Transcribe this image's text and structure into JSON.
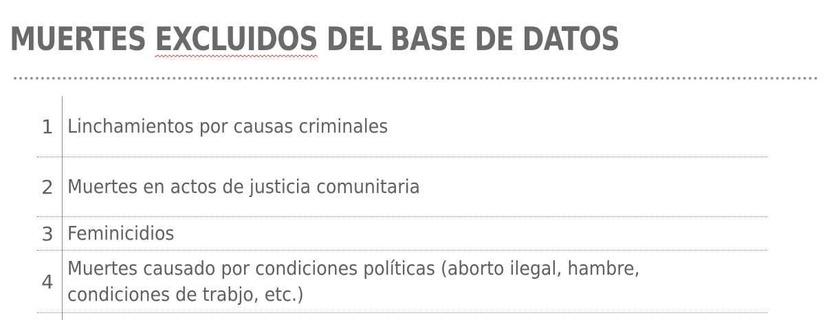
{
  "title": {
    "before": "MUERTES ",
    "underlined": "EXCLUIDOS",
    "after": " DEL BASE DE DATOS"
  },
  "items": [
    {
      "number": "1",
      "text": "Linchamientos por causas criminales"
    },
    {
      "number": "2",
      "text": "Muertes en actos de justicia comunitaria"
    },
    {
      "number": "3",
      "text": "Feminicidios"
    },
    {
      "number": "4",
      "text": "Muertes causado por condiciones políticas (aborto ilegal, hambre, condiciones de trabjo, etc.)"
    }
  ]
}
